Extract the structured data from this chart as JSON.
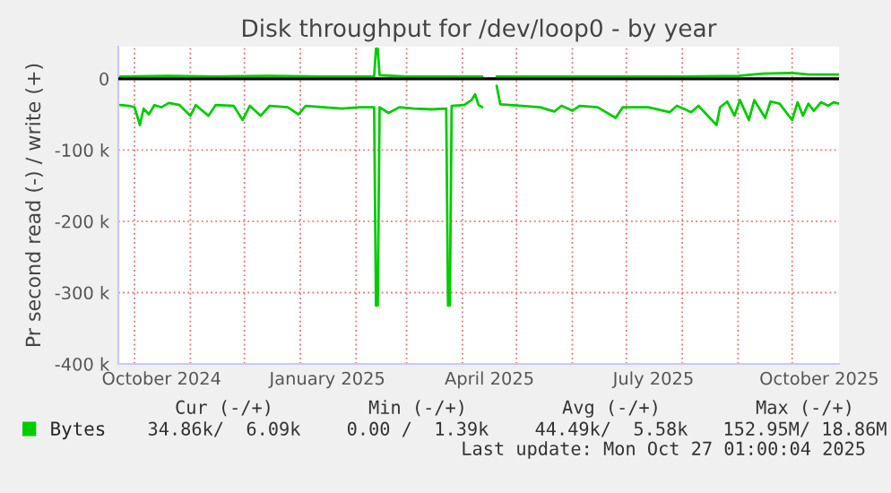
{
  "chart_data": {
    "type": "line",
    "title": "Disk throughput for /dev/loop0 - by year",
    "ylabel": "Pr second read (-) / write (+)",
    "xlim": [
      "2024-09-22",
      "2025-10-27"
    ],
    "xticks": [
      {
        "value": "2024-10-01",
        "label": null
      },
      {
        "value": "2024-10-16",
        "label": "October 2024"
      },
      {
        "value": "2024-11-01",
        "label": null
      },
      {
        "value": "2024-12-01",
        "label": null
      },
      {
        "value": "2025-01-01",
        "label": null
      },
      {
        "value": "2025-01-16",
        "label": "January 2025"
      },
      {
        "value": "2025-02-01",
        "label": null
      },
      {
        "value": "2025-03-01",
        "label": null
      },
      {
        "value": "2025-04-01",
        "label": null
      },
      {
        "value": "2025-04-16",
        "label": "April 2025"
      },
      {
        "value": "2025-05-01",
        "label": null
      },
      {
        "value": "2025-06-01",
        "label": null
      },
      {
        "value": "2025-07-01",
        "label": null
      },
      {
        "value": "2025-07-16",
        "label": "July 2025"
      },
      {
        "value": "2025-08-01",
        "label": null
      },
      {
        "value": "2025-09-01",
        "label": null
      },
      {
        "value": "2025-10-01",
        "label": null
      },
      {
        "value": "2025-10-16",
        "label": "October 2025"
      }
    ],
    "ylim": [
      -400000,
      45000
    ],
    "yticks": [
      {
        "value": -400000,
        "label": "-400 k"
      },
      {
        "value": -300000,
        "label": "-300 k"
      },
      {
        "value": -200000,
        "label": "-200 k"
      },
      {
        "value": -100000,
        "label": "-100 k"
      },
      0
    ],
    "grid": true,
    "legend": "bottom",
    "marker": "none",
    "line_style": "solid",
    "ref_lines": [
      {
        "axis": "y",
        "value": 0,
        "label": null,
        "color": "#000000"
      }
    ],
    "series": [
      {
        "color": "#00cc00",
        "x": [
          "2024-09-23",
          "2024-09-28",
          "2024-10-01",
          "2024-10-04",
          "2024-10-06",
          "2024-10-09",
          "2024-10-12",
          "2024-10-16",
          "2024-10-20",
          "2024-10-26",
          "2024-11-01",
          "2024-11-04",
          "2024-11-11",
          "2024-11-15",
          "2024-11-25",
          "2024-11-30",
          "2024-12-04",
          "2024-12-10",
          "2024-12-15",
          "2024-12-25",
          "2024-12-31",
          "2025-01-04",
          "2025-01-14",
          "2025-01-24",
          "2025-02-03",
          "2025-02-11",
          "2025-02-12",
          "2025-02-13",
          "2025-02-14",
          "2025-02-19",
          "2025-02-25",
          "2025-03-05",
          "2025-03-15",
          "2025-03-23",
          "2025-03-24",
          "2025-03-25",
          "2025-03-26",
          "2025-04-02",
          "2025-04-06",
          "2025-04-08",
          "2025-04-10",
          "2025-04-12",
          "2025-04-13",
          "2025-04-20",
          "2025-04-22",
          "2025-05-04",
          "2025-05-14",
          "2025-05-22",
          "2025-05-26",
          "2025-06-01",
          "2025-06-05",
          "2025-06-15",
          "2025-06-25",
          "2025-06-29",
          "2025-07-13",
          "2025-07-25",
          "2025-07-29",
          "2025-08-06",
          "2025-08-10",
          "2025-08-20",
          "2025-08-22",
          "2025-08-26",
          "2025-08-30",
          "2025-09-02",
          "2025-09-07",
          "2025-09-10",
          "2025-09-16",
          "2025-09-19",
          "2025-09-24",
          "2025-10-01",
          "2025-10-04",
          "2025-10-07",
          "2025-10-10",
          "2025-10-13",
          "2025-10-17",
          "2025-10-21",
          "2025-10-24",
          "2025-10-27"
        ],
        "values": [
          -37000,
          -38000,
          -40000,
          -65000,
          -42000,
          -50000,
          -37000,
          -40000,
          -34000,
          -37000,
          -52000,
          -37000,
          -52000,
          -37000,
          -38000,
          -58000,
          -38000,
          -52000,
          -38000,
          -40000,
          -50000,
          -38000,
          -40000,
          -42000,
          -40000,
          -40000,
          -318000,
          -318000,
          -40000,
          -48000,
          -40000,
          -42000,
          -43000,
          -42000,
          -318000,
          -318000,
          -38000,
          -37000,
          -30000,
          -22000,
          -37000,
          -40000,
          null,
          -10000,
          -36000,
          -38000,
          -40000,
          -46000,
          -38000,
          -45000,
          -38000,
          -40000,
          -55000,
          -40000,
          -40000,
          -47000,
          -38000,
          -47000,
          -38000,
          -65000,
          -40000,
          -32000,
          -52000,
          -30000,
          -58000,
          -30000,
          -55000,
          -32000,
          -35000,
          -58000,
          -33000,
          -52000,
          -35000,
          -45000,
          -33000,
          -38000,
          -33000,
          -35000
        ]
      },
      {
        "name": "Bytes",
        "color": "#00cc00",
        "x": [
          "2024-09-23",
          "2024-10-20",
          "2024-11-15",
          "2024-12-15",
          "2025-01-14",
          "2025-02-11",
          "2025-02-12",
          "2025-02-13",
          "2025-02-14",
          "2025-03-01",
          "2025-04-12",
          "2025-04-13",
          "2025-04-20",
          "2025-06-01",
          "2025-08-01",
          "2025-09-01",
          "2025-09-15",
          "2025-10-01",
          "2025-10-10",
          "2025-10-27"
        ],
        "values": [
          3000,
          4000,
          3000,
          4000,
          3000,
          3000,
          42000,
          42000,
          5000,
          3000,
          3000,
          null,
          3000,
          3000,
          3000,
          4000,
          7000,
          8000,
          6000,
          6000
        ]
      }
    ],
    "annotations": [
      "Cur (-/+)",
      "Min (-/+)",
      "Avg (-/+)",
      "Max (-/+)",
      "34.86k/  6.09k",
      "0.00 /  1.39k",
      "44.49k/  5.58k",
      "152.95M/ 18.86M",
      "Last update: Mon Oct 27 01:00:04 2025"
    ]
  }
}
